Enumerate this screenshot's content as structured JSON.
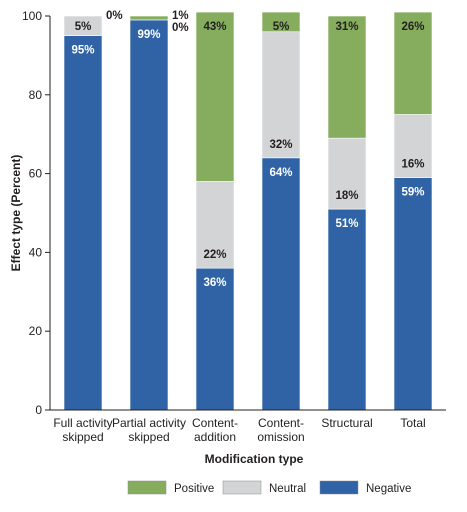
{
  "chart_data": {
    "type": "bar",
    "stacked": true,
    "title": "",
    "xlabel": "Modification type",
    "ylabel": "Effect type (Percent)",
    "ylim": [
      0,
      100
    ],
    "yticks": [
      0,
      20,
      40,
      60,
      80,
      100
    ],
    "categories": [
      [
        "Full activity",
        "skipped"
      ],
      [
        "Partial activity",
        "skipped"
      ],
      [
        "Content-",
        "addition"
      ],
      [
        "Content-",
        "omission"
      ],
      [
        "Structural"
      ],
      [
        "Total"
      ]
    ],
    "series": [
      {
        "name": "Negative",
        "color": "#2f63a6",
        "values": [
          95,
          99,
          36,
          64,
          51,
          59
        ],
        "labels": [
          "95%",
          "99%",
          "36%",
          "64%",
          "51%",
          "59%"
        ]
      },
      {
        "name": "Neutral",
        "color": "#d3d4d6",
        "values": [
          5,
          0,
          22,
          32,
          18,
          16
        ],
        "labels": [
          "5%",
          "0%",
          "22%",
          "32%",
          "18%",
          "16%"
        ]
      },
      {
        "name": "Positive",
        "color": "#86ad5e",
        "values": [
          0,
          1,
          43,
          5,
          31,
          26
        ],
        "labels": [
          "0%",
          "1%",
          "43%",
          "5%",
          "31%",
          "26%"
        ]
      }
    ],
    "legend": {
      "position": "bottom",
      "order": [
        "Positive",
        "Neutral",
        "Negative"
      ]
    },
    "grid": false
  }
}
